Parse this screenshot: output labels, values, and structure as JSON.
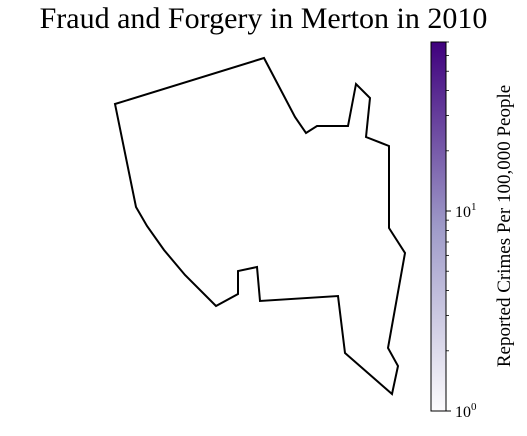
{
  "chart_data": {
    "type": "choropleth",
    "title": "Fraud and Forgery in Merton in 2010",
    "region": "Merton",
    "year": "2010",
    "colorbar": {
      "label": "Reported Crimes Per 100,000 People",
      "scale": "log",
      "range": [
        1,
        70
      ],
      "ticks": [
        {
          "base": "10",
          "exp": "0"
        },
        {
          "base": "10",
          "exp": "1"
        }
      ],
      "colormap": "Purples",
      "colors": {
        "low": "#fcfbfd",
        "mid": "#9e9ac8",
        "high": "#3f007d"
      }
    },
    "fill": "none",
    "outline_color": "#000000"
  }
}
